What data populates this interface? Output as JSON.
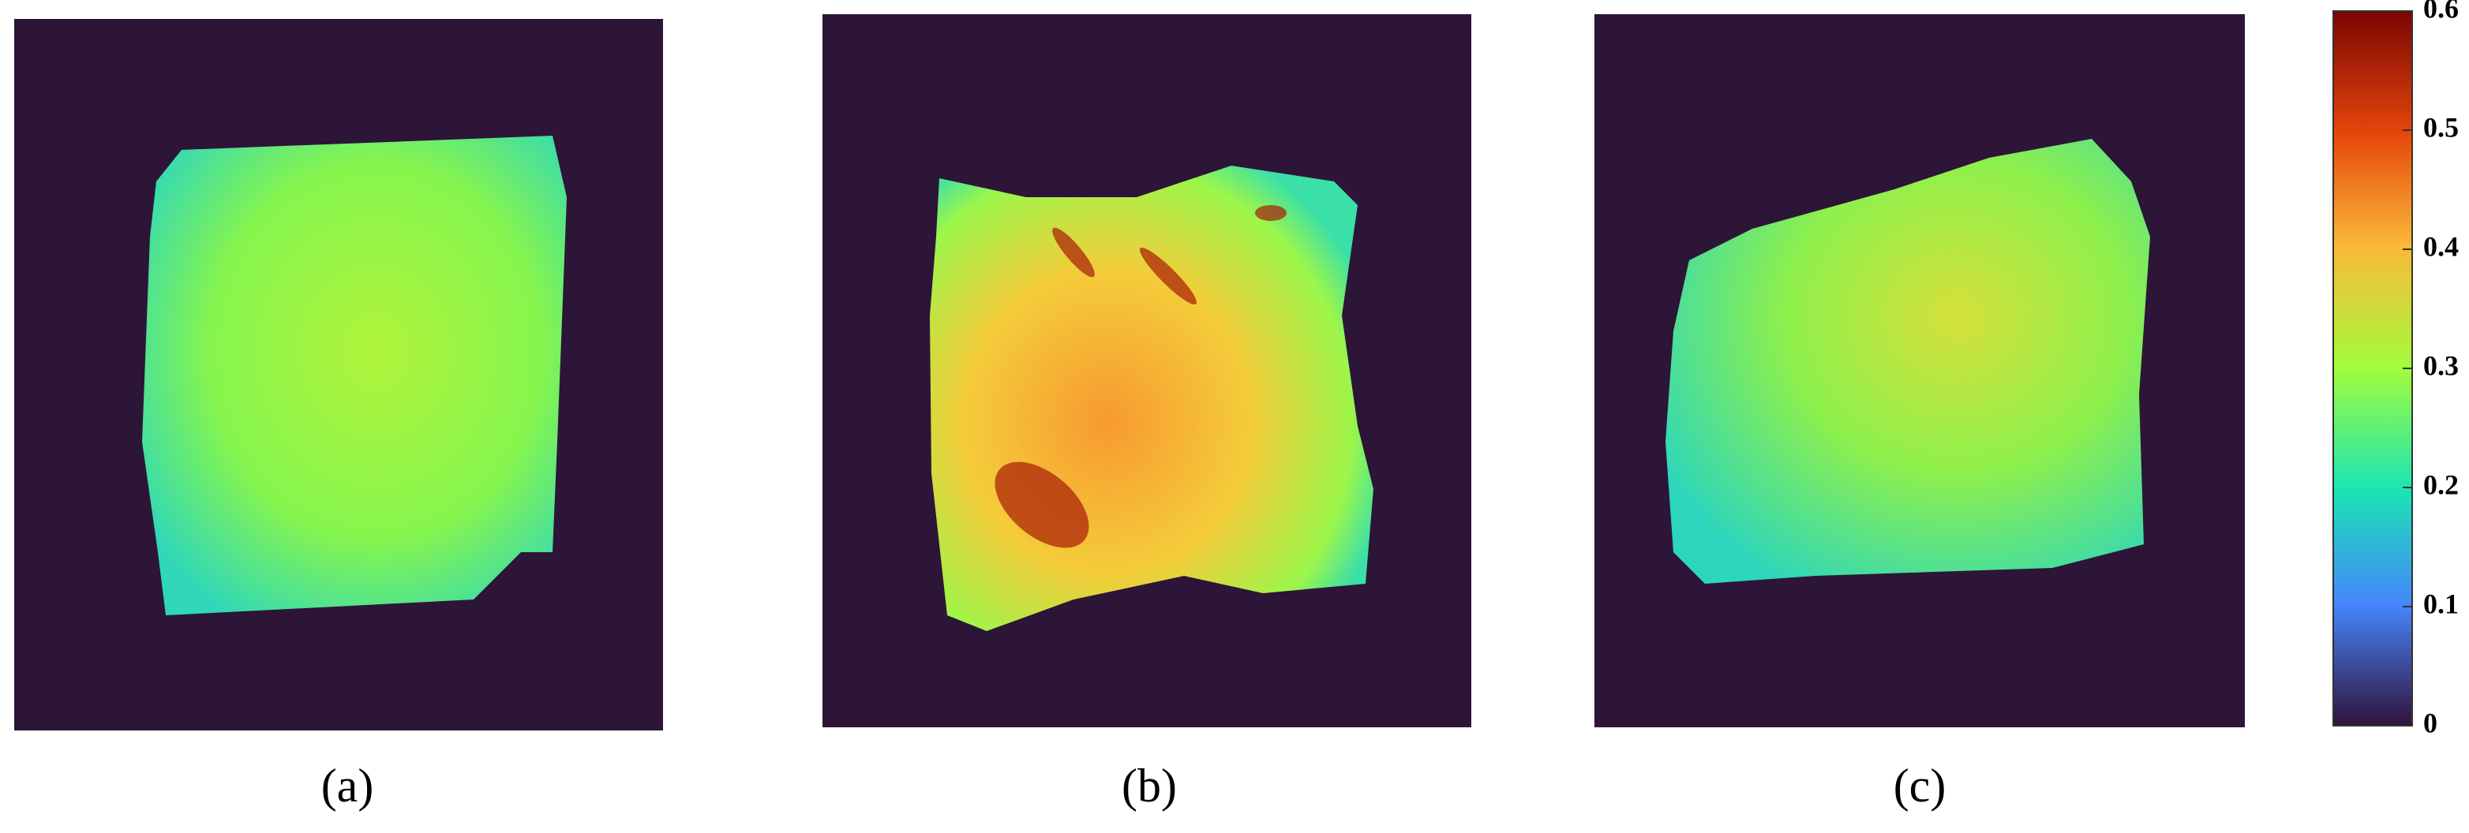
{
  "panels": [
    {
      "label": "(a)"
    },
    {
      "label": "(b)"
    },
    {
      "label": "(c)"
    }
  ],
  "colorbar": {
    "ylim": [
      0,
      0.6
    ],
    "yticks": [
      0,
      0.1,
      0.2,
      0.3,
      0.4,
      0.5,
      0.6
    ]
  }
}
